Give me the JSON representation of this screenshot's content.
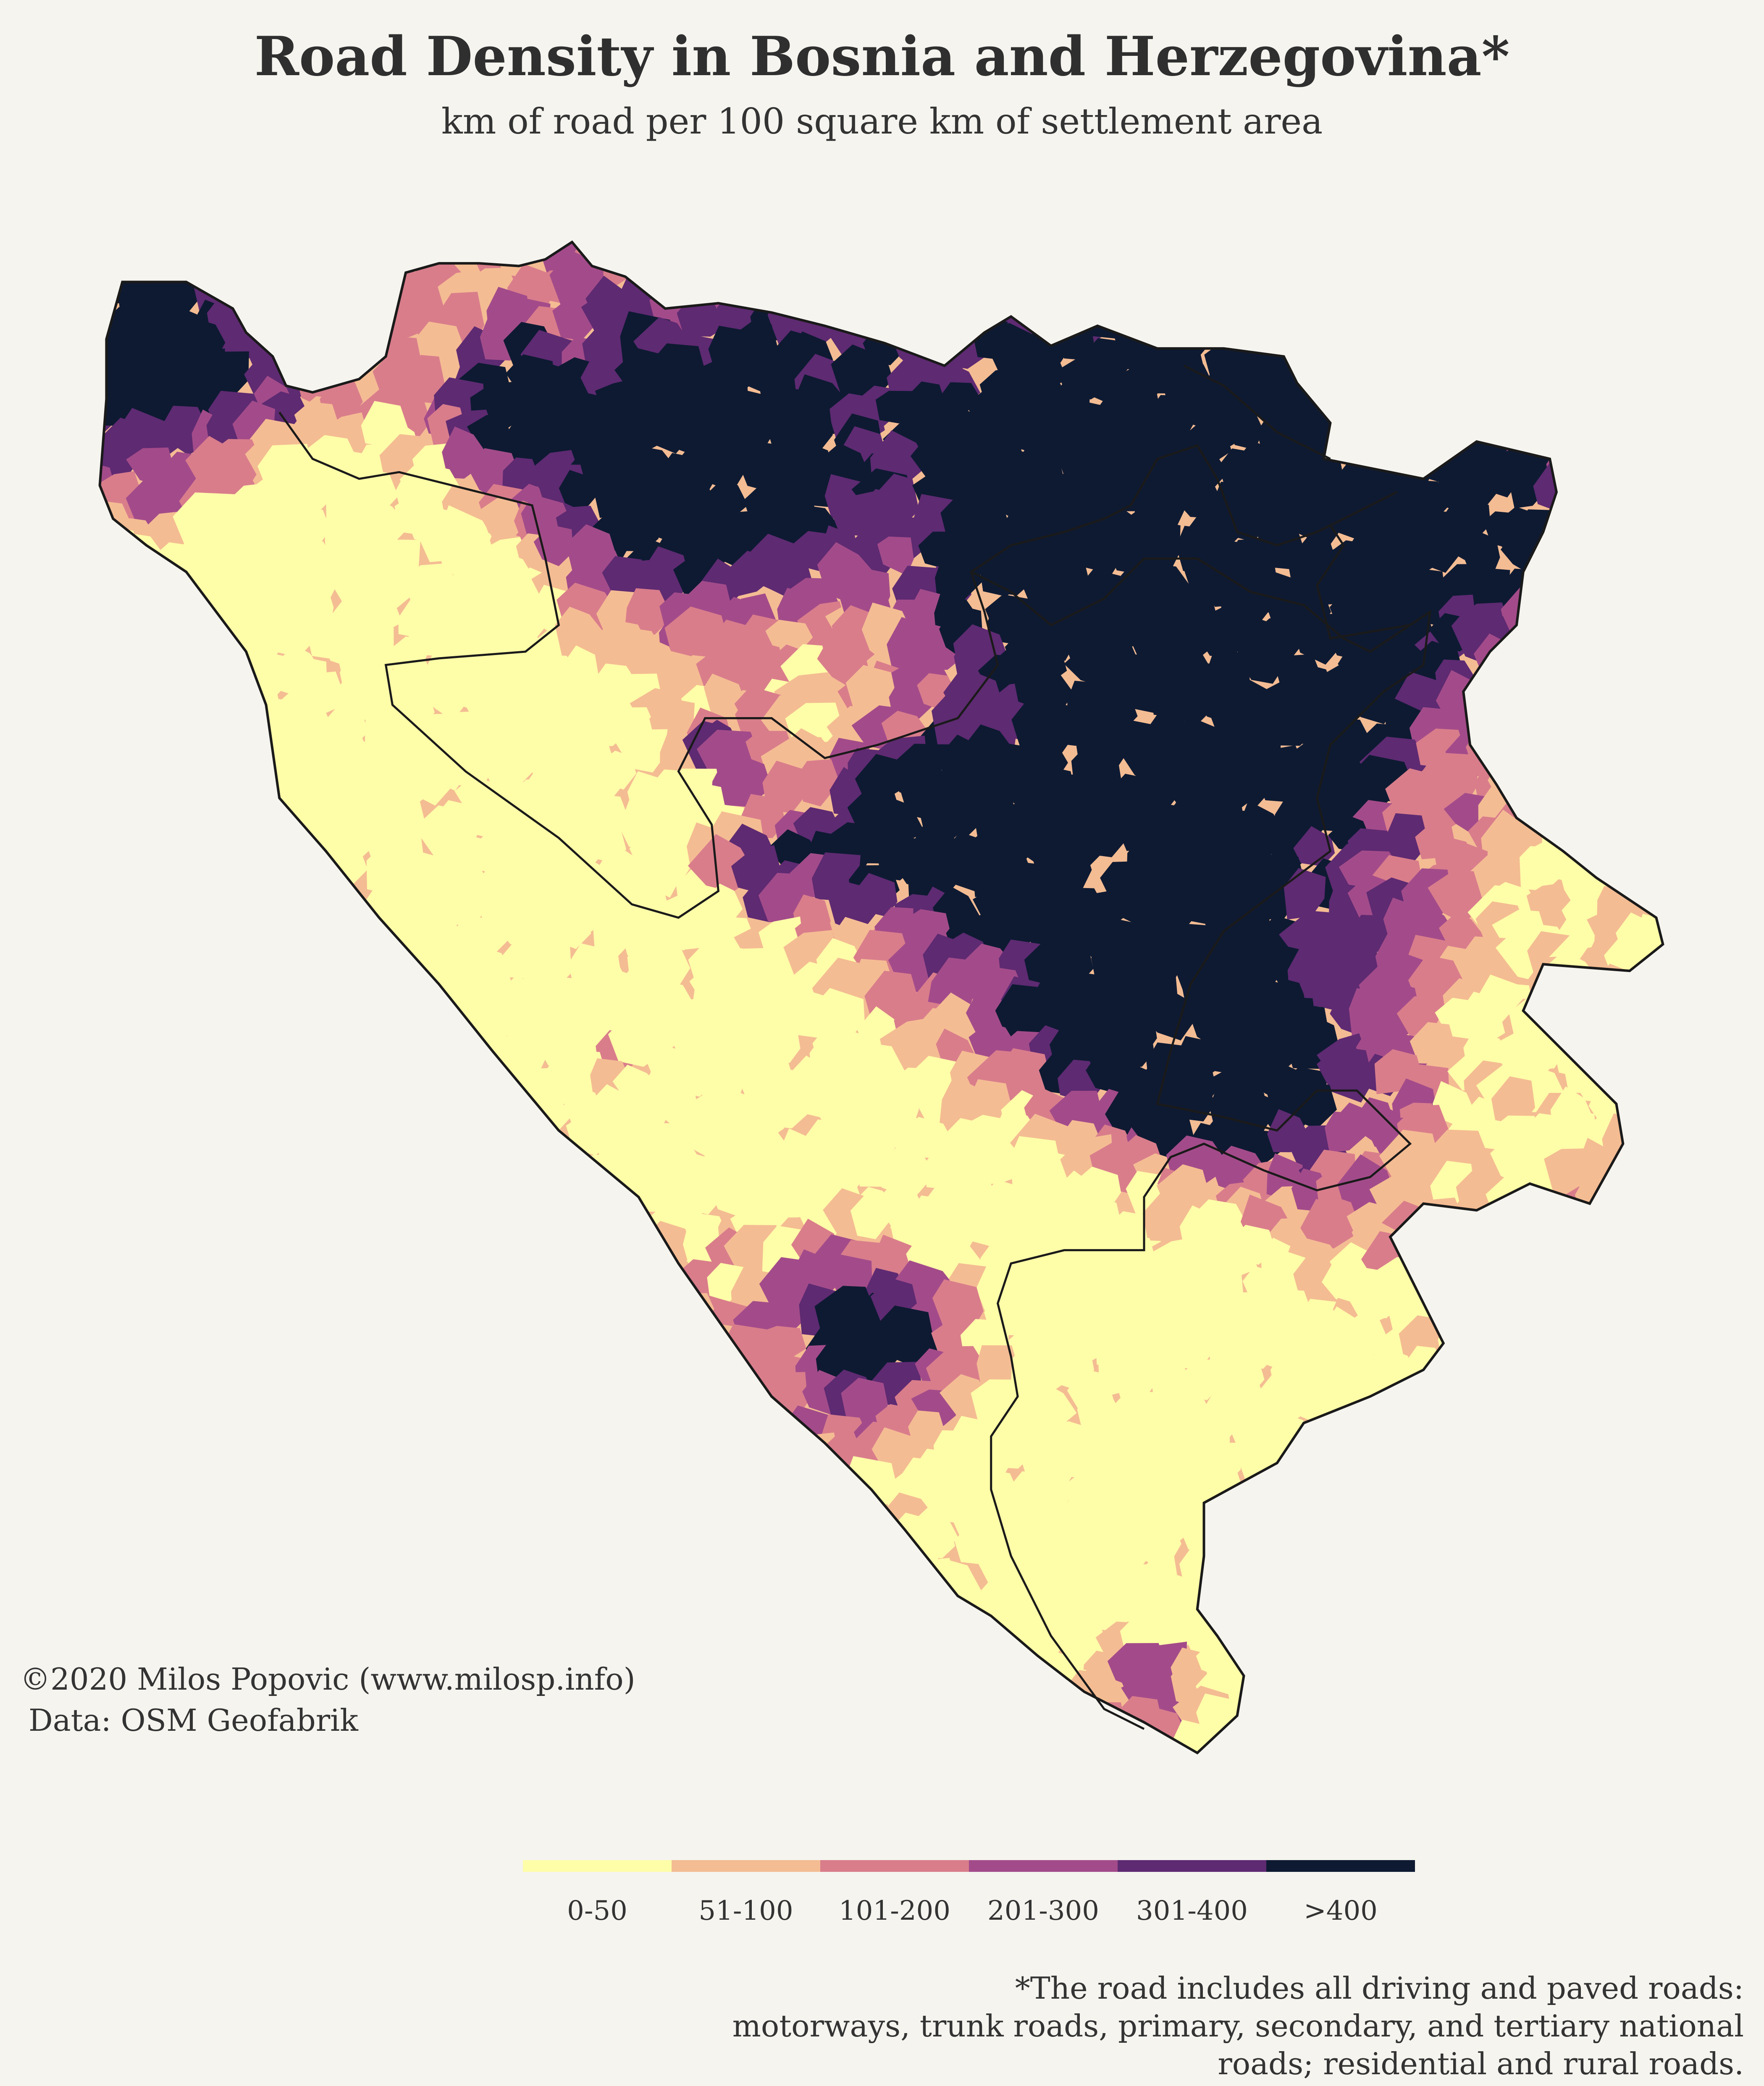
{
  "title": "Road Density in Bosnia and Herzegovina*",
  "subtitle": "km of road per 100 square km of settlement area",
  "credit": {
    "line1": "©2020 Milos Popovic (www.milosp.info)",
    "line2": "Data: OSM Geofabrik"
  },
  "legend": {
    "items": [
      {
        "label": "0-50",
        "color": "#fefda8"
      },
      {
        "label": "51-100",
        "color": "#f4bc93"
      },
      {
        "label": "101-200",
        "color": "#d97d8b"
      },
      {
        "label": "201-300",
        "color": "#a34b8a"
      },
      {
        "label": "301-400",
        "color": "#5e2a72"
      },
      {
        "label": ">400",
        "color": "#0e1a32"
      }
    ]
  },
  "footnote": {
    "line1": "*The road includes all driving and paved roads:",
    "line2": "motorways, trunk roads, primary, secondary, and tertiary national",
    "line3": "roads; residential and rural roads."
  },
  "colors": {
    "background": "#f5f4ef",
    "border": "#1a1a1a"
  }
}
